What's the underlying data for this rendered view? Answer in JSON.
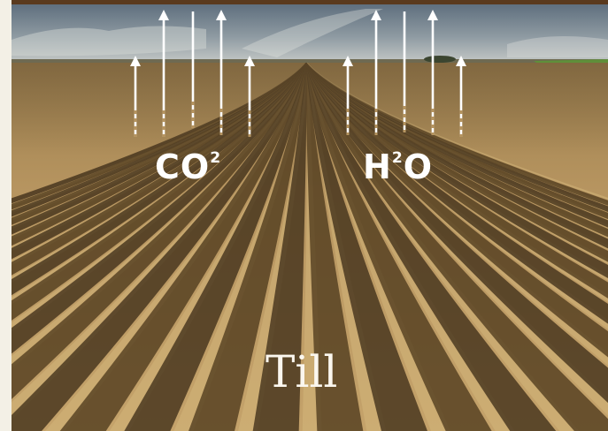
{
  "labels": {
    "co2_main": "CO",
    "co2_sup": "2",
    "h2o_main": "H",
    "h2o_sup": "2",
    "h2o_end": "O",
    "till": "Till"
  },
  "colors": {
    "sky_top": "#6f7f8e",
    "sky_bottom": "#c6cbcc",
    "soil_light": "#c9a86a",
    "soil_mid": "#a88550",
    "soil_dark": "#3e2c16",
    "arrow": "#ffffff",
    "grass": "#5f8f3a"
  }
}
